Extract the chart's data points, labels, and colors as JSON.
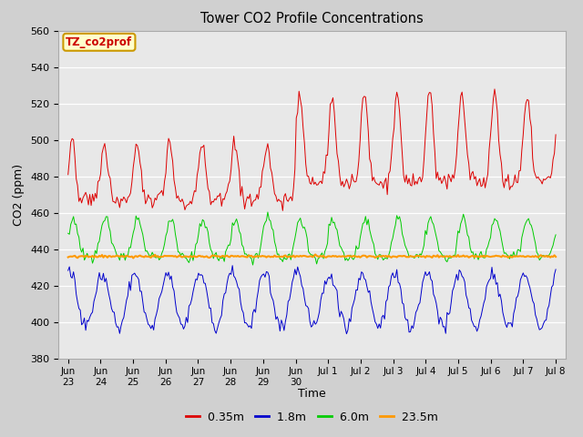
{
  "title": "Tower CO2 Profile Concentrations",
  "xlabel": "Time",
  "ylabel": "CO2 (ppm)",
  "ylim": [
    380,
    560
  ],
  "yticks": [
    380,
    400,
    420,
    440,
    460,
    480,
    500,
    520,
    540,
    560
  ],
  "annotation_text": "TZ_co2prof",
  "annotation_color": "#cc0000",
  "annotation_bg": "#ffffcc",
  "annotation_border": "#cc9900",
  "colors": {
    "0.35m": "#dd0000",
    "1.8m": "#0000cc",
    "6.0m": "#00cc00",
    "23.5m": "#ff9900"
  },
  "fig_facecolor": "#d0d0d0",
  "plot_facecolor": "#e8e8e8",
  "grid_color": "#ffffff",
  "orange_level": 436,
  "xtick_labels": [
    "Jun\n23",
    "Jun\n24",
    "Jun\n25",
    "Jun\n26",
    "Jun\n27",
    "Jun\n28",
    "Jun\n29",
    "Jun\n30",
    "Jul 1",
    "Jul 2",
    "Jul 3",
    "Jul 4",
    "Jul 5",
    "Jul 6",
    "Jul 7",
    "Jul 8"
  ]
}
